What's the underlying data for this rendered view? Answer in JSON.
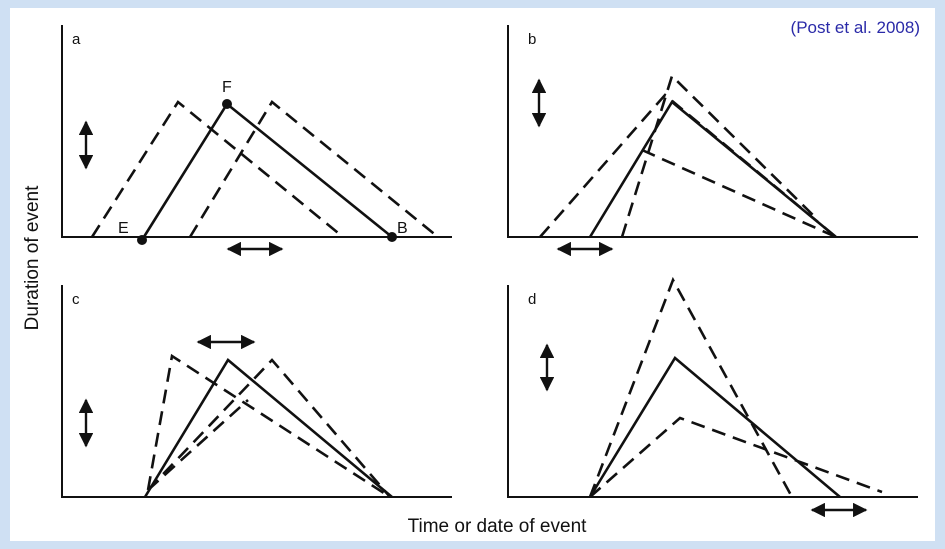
{
  "citation": "(Post et al. 2008)",
  "axis_labels": {
    "y": "Duration of event",
    "x": "Time or date of event"
  },
  "panels": [
    {
      "id": "a",
      "label": "a",
      "points": {
        "emergence": "E",
        "peak": "F",
        "end": "B"
      }
    },
    {
      "id": "b",
      "label": "b"
    },
    {
      "id": "c",
      "label": "c"
    },
    {
      "id": "d",
      "label": "d"
    }
  ]
}
